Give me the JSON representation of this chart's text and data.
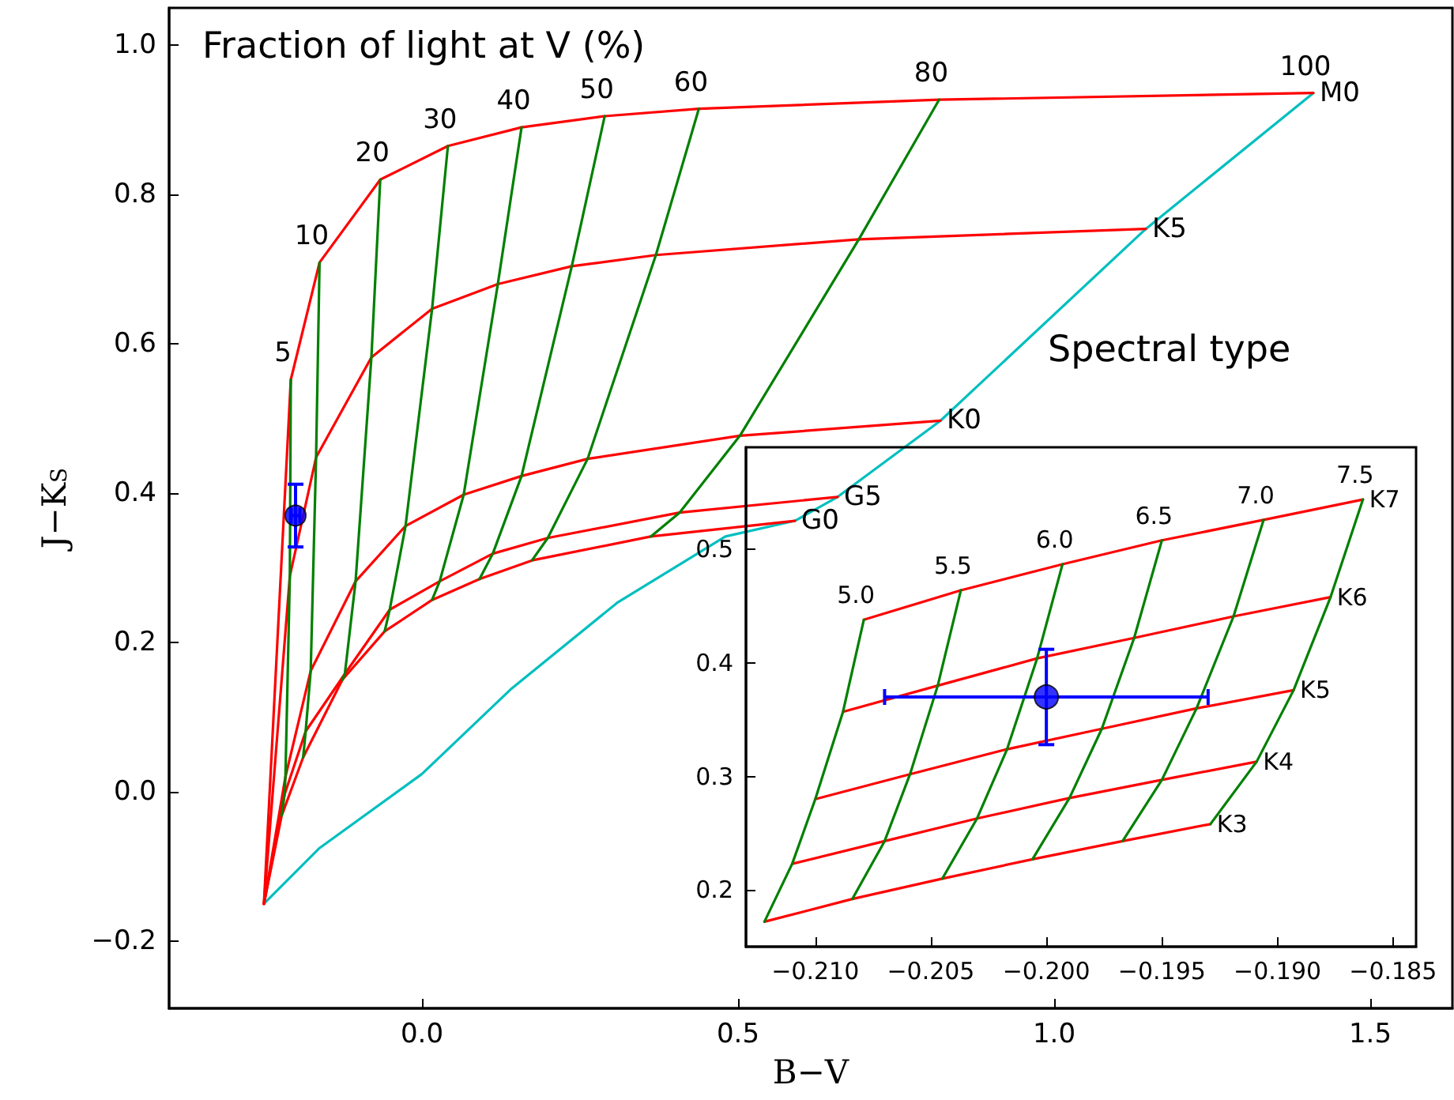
{
  "chart_data": [
    {
      "type": "line",
      "xlabel": "B−V",
      "ylabel": "J−K$_{S}$",
      "annotations": [
        "Fraction of light at V (%)",
        "Spectral type"
      ],
      "xlim": [
        -0.4,
        1.63
      ],
      "ylim": [
        -0.29,
        1.05
      ],
      "xticks": [
        {
          "value": 0,
          "label": "0.0"
        },
        {
          "value": 0.5,
          "label": "0.5"
        },
        {
          "value": 1,
          "label": "1.0"
        },
        {
          "value": 1.5,
          "label": "1.5"
        }
      ],
      "yticks": [
        {
          "value": -0.2,
          "label": "−0.2"
        },
        {
          "value": 0,
          "label": "0.0"
        },
        {
          "value": 0.2,
          "label": "0.2"
        },
        {
          "value": 0.4,
          "label": "0.4"
        },
        {
          "value": 0.6,
          "label": "0.6"
        },
        {
          "value": 0.8,
          "label": "0.8"
        },
        {
          "value": 1,
          "label": "1.0"
        }
      ],
      "marker": "none",
      "series": [
        {
          "name": "100",
          "color": "#00bfbf",
          "x": [
            -0.25,
            -0.163,
            0.0,
            0.14,
            0.31,
            0.48,
            0.59,
            0.6575,
            0.82,
            1.145,
            1.41
          ],
          "values": [
            -0.15,
            -0.076,
            0.024,
            0.137,
            0.254,
            0.342,
            0.363,
            0.395,
            0.497,
            0.754,
            0.936
          ]
        },
        {
          "name": "M0",
          "color": "#ff0000",
          "x": [
            -0.25,
            -0.2075,
            -0.162,
            -0.066,
            0.041,
            0.1575,
            0.289,
            0.438,
            0.818,
            1.41
          ],
          "values": [
            -0.15,
            0.552,
            0.709,
            0.82,
            0.865,
            0.89,
            0.905,
            0.915,
            0.927,
            0.936
          ]
        },
        {
          "name": "K5",
          "color": "#ff0000",
          "x": [
            -0.25,
            -0.209,
            -0.1675,
            -0.08,
            0.016,
            0.12,
            0.237,
            0.37,
            0.691,
            1.145
          ],
          "values": [
            -0.15,
            0.289,
            0.448,
            0.582,
            0.647,
            0.68,
            0.704,
            0.719,
            0.74,
            0.754
          ]
        },
        {
          "name": "K0",
          "color": "#ff0000",
          "x": [
            -0.25,
            -0.216,
            -0.176,
            -0.105,
            -0.026,
            0.066,
            0.1575,
            0.262,
            0.503,
            0.82
          ],
          "values": [
            -0.15,
            0.02,
            0.162,
            0.282,
            0.356,
            0.398,
            0.423,
            0.446,
            0.477,
            0.497
          ]
        },
        {
          "name": "G5",
          "color": "#ff0000",
          "x": [
            -0.25,
            -0.2175,
            -0.184,
            -0.122,
            -0.051,
            0.028,
            0.112,
            0.199,
            0.4075,
            0.6575
          ],
          "values": [
            -0.15,
            -0.004,
            0.081,
            0.158,
            0.244,
            0.282,
            0.319,
            0.34,
            0.374,
            0.395
          ]
        },
        {
          "name": "G0",
          "color": "#ff0000",
          "x": [
            -0.25,
            -0.222,
            -0.188,
            -0.126,
            -0.059,
            0.016,
            0.091,
            0.174,
            0.362,
            0.59
          ],
          "values": [
            -0.15,
            -0.032,
            0.046,
            0.15,
            0.215,
            0.257,
            0.285,
            0.31,
            0.342,
            0.363
          ]
        },
        {
          "name": "5",
          "color": "#008000",
          "x": [
            -0.222,
            -0.2175,
            -0.216,
            -0.209,
            -0.2075
          ],
          "values": [
            -0.032,
            -0.004,
            0.02,
            0.289,
            0.552
          ]
        },
        {
          "name": "10",
          "color": "#008000",
          "x": [
            -0.188,
            -0.184,
            -0.176,
            -0.1675,
            -0.162
          ],
          "values": [
            0.046,
            0.081,
            0.162,
            0.448,
            0.709
          ]
        },
        {
          "name": "20",
          "color": "#008000",
          "x": [
            -0.126,
            -0.122,
            -0.105,
            -0.08,
            -0.066
          ],
          "values": [
            0.15,
            0.158,
            0.282,
            0.582,
            0.82
          ]
        },
        {
          "name": "30",
          "color": "#008000",
          "x": [
            -0.059,
            -0.051,
            -0.026,
            0.016,
            0.041
          ],
          "values": [
            0.215,
            0.244,
            0.356,
            0.647,
            0.865
          ]
        },
        {
          "name": "40",
          "color": "#008000",
          "x": [
            0.016,
            0.028,
            0.066,
            0.12,
            0.1575
          ],
          "values": [
            0.257,
            0.282,
            0.398,
            0.68,
            0.89
          ]
        },
        {
          "name": "50",
          "color": "#008000",
          "x": [
            0.091,
            0.112,
            0.1575,
            0.237,
            0.289
          ],
          "values": [
            0.285,
            0.319,
            0.423,
            0.704,
            0.905
          ]
        },
        {
          "name": "60",
          "color": "#008000",
          "x": [
            0.174,
            0.199,
            0.262,
            0.37,
            0.438
          ],
          "values": [
            0.31,
            0.34,
            0.446,
            0.719,
            0.915
          ]
        },
        {
          "name": "80",
          "color": "#008000",
          "x": [
            0.362,
            0.4075,
            0.503,
            0.691,
            0.818
          ],
          "values": [
            0.342,
            0.374,
            0.477,
            0.74,
            0.927
          ]
        },
        {
          "type": "scatter",
          "marker": "circle",
          "color": "#0000ff",
          "x": [
            -0.2
          ],
          "values": [
            0.37
          ],
          "errors": [
            0.042
          ],
          "xerrors": [
            0.007
          ]
        }
      ]
    },
    {
      "type": "line",
      "xlim": [
        -0.213,
        -0.184
      ],
      "ylim": [
        0.15,
        0.59
      ],
      "xticks": [
        {
          "value": -0.21,
          "label": "−0.210"
        },
        {
          "value": -0.205,
          "label": "−0.205"
        },
        {
          "value": -0.2,
          "label": "−0.200"
        },
        {
          "value": -0.195,
          "label": "−0.195"
        },
        {
          "value": -0.19,
          "label": "−0.190"
        },
        {
          "value": -0.185,
          "label": "−0.185"
        }
      ],
      "yticks": [
        0.2,
        0.3,
        0.4,
        0.5
      ],
      "marker": "none",
      "series": [
        {
          "name": "K7",
          "color": "#ff0000",
          "x": [
            -0.2079,
            -0.2037,
            -0.1993,
            -0.195,
            -0.1906,
            -0.1863
          ],
          "values": [
            0.438,
            0.464,
            0.487,
            0.508,
            0.526,
            0.544
          ]
        },
        {
          "name": "K6",
          "color": "#ff0000",
          "x": [
            -0.2088,
            -0.2047,
            -0.2004,
            -0.1962,
            -0.1919,
            -0.1877
          ],
          "values": [
            0.357,
            0.38,
            0.404,
            0.422,
            0.441,
            0.458
          ]
        },
        {
          "name": "K5",
          "color": "#ff0000",
          "x": [
            -0.21,
            -0.2059,
            -0.2017,
            -0.1976,
            -0.1935,
            -0.1893
          ],
          "values": [
            0.28,
            0.302,
            0.324,
            0.342,
            0.36,
            0.376
          ]
        },
        {
          "name": "K4",
          "color": "#ff0000",
          "x": [
            -0.211,
            -0.207,
            -0.203,
            -0.199,
            -0.195,
            -0.1909
          ],
          "values": [
            0.223,
            0.243,
            0.263,
            0.281,
            0.297,
            0.313
          ]
        },
        {
          "name": "K3",
          "color": "#ff0000",
          "x": [
            -0.2122,
            -0.2084,
            -0.2045,
            -0.2006,
            -0.1967,
            -0.1929
          ],
          "values": [
            0.172,
            0.192,
            0.21,
            0.227,
            0.243,
            0.258
          ]
        },
        {
          "name": "5.0",
          "color": "#008000",
          "x": [
            -0.2122,
            -0.211,
            -0.21,
            -0.2088,
            -0.2079
          ],
          "values": [
            0.172,
            0.223,
            0.28,
            0.357,
            0.438
          ]
        },
        {
          "name": "5.5",
          "color": "#008000",
          "x": [
            -0.2084,
            -0.207,
            -0.2059,
            -0.2047,
            -0.2037
          ],
          "values": [
            0.192,
            0.243,
            0.302,
            0.38,
            0.464
          ]
        },
        {
          "name": "6.0",
          "color": "#008000",
          "x": [
            -0.2045,
            -0.203,
            -0.2017,
            -0.2004,
            -0.1993
          ],
          "values": [
            0.21,
            0.263,
            0.324,
            0.404,
            0.487
          ]
        },
        {
          "name": "6.5",
          "color": "#008000",
          "x": [
            -0.2006,
            -0.199,
            -0.1976,
            -0.1962,
            -0.195
          ],
          "values": [
            0.227,
            0.281,
            0.342,
            0.422,
            0.508
          ]
        },
        {
          "name": "7.0",
          "color": "#008000",
          "x": [
            -0.1967,
            -0.195,
            -0.1935,
            -0.1919,
            -0.1906
          ],
          "values": [
            0.243,
            0.297,
            0.36,
            0.441,
            0.526
          ]
        },
        {
          "name": "7.5",
          "color": "#008000",
          "x": [
            -0.1929,
            -0.1909,
            -0.1893,
            -0.1877,
            -0.1863
          ],
          "values": [
            0.258,
            0.313,
            0.376,
            0.458,
            0.544
          ]
        },
        {
          "type": "scatter",
          "marker": "circle",
          "color": "#0000ff",
          "x": [
            -0.2
          ],
          "values": [
            0.37
          ],
          "errors": [
            0.042
          ],
          "xerrors": [
            0.007
          ]
        }
      ]
    }
  ]
}
